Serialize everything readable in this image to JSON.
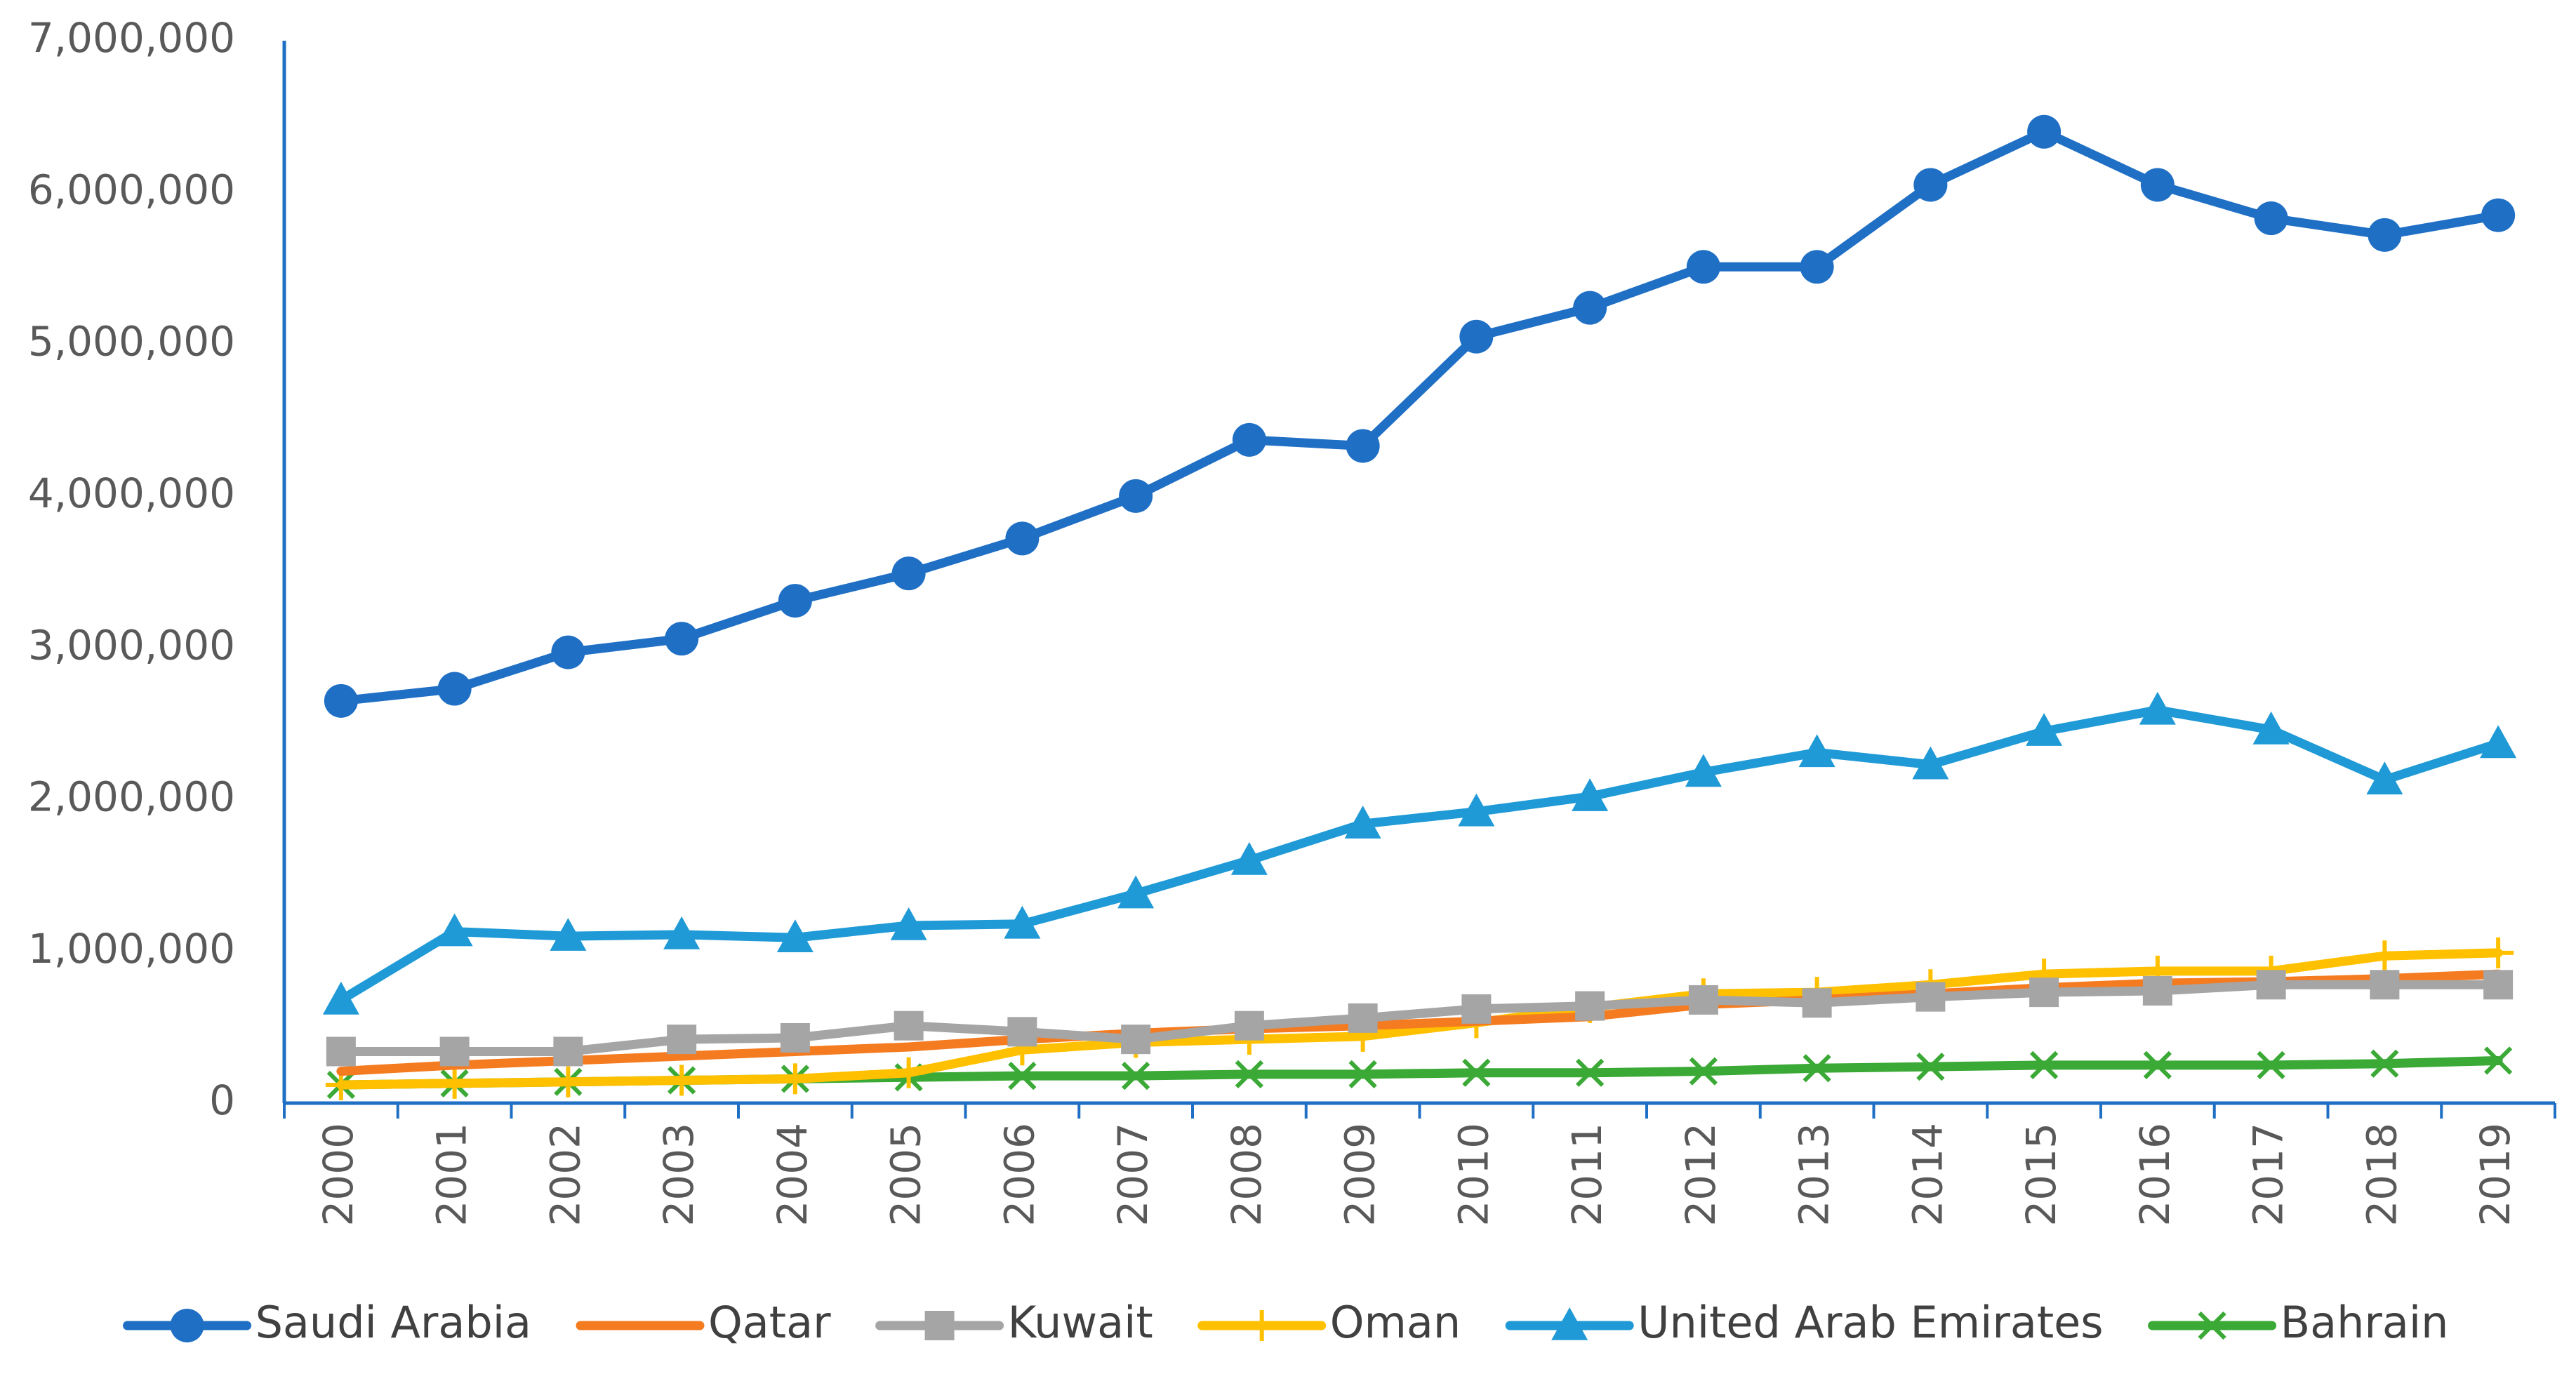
{
  "chart_data": {
    "type": "line",
    "title": "",
    "xlabel": "",
    "ylabel": "",
    "ylim": [
      0,
      7000000
    ],
    "yticks": [
      0,
      1000000,
      2000000,
      3000000,
      4000000,
      5000000,
      6000000,
      7000000
    ],
    "ytick_labels": [
      "0",
      "1,000,000",
      "2,000,000",
      "3,000,000",
      "4,000,000",
      "5,000,000",
      "6,000,000",
      "7,000,000"
    ],
    "grid": false,
    "legend_position": "bottom",
    "x": [
      "2000",
      "2001",
      "2002",
      "2003",
      "2004",
      "2005",
      "2006",
      "2007",
      "2008",
      "2009",
      "2010",
      "2011",
      "2012",
      "2013",
      "2014",
      "2015",
      "2016",
      "2017",
      "2018",
      "2019"
    ],
    "series": [
      {
        "name": "Saudi Arabia",
        "color": "#1f6fc5",
        "marker": "circle",
        "values": [
          2650000,
          2730000,
          2970000,
          3060000,
          3310000,
          3490000,
          3720000,
          4000000,
          4370000,
          4330000,
          5050000,
          5240000,
          5510000,
          5510000,
          6050000,
          6400000,
          6050000,
          5830000,
          5720000,
          5850000
        ]
      },
      {
        "name": "Qatar",
        "color": "#f47b20",
        "marker": "none",
        "values": [
          210000,
          250000,
          280000,
          310000,
          340000,
          370000,
          420000,
          460000,
          490000,
          510000,
          540000,
          570000,
          650000,
          680000,
          720000,
          760000,
          790000,
          800000,
          820000,
          850000
        ]
      },
      {
        "name": "Kuwait",
        "color": "#a5a5a5",
        "marker": "square",
        "values": [
          340000,
          340000,
          340000,
          420000,
          430000,
          510000,
          470000,
          420000,
          510000,
          560000,
          620000,
          640000,
          680000,
          660000,
          700000,
          730000,
          740000,
          780000,
          780000,
          780000
        ]
      },
      {
        "name": "Oman",
        "color": "#ffc000",
        "marker": "plus",
        "values": [
          120000,
          130000,
          140000,
          150000,
          160000,
          200000,
          350000,
          400000,
          420000,
          440000,
          530000,
          630000,
          720000,
          730000,
          780000,
          850000,
          870000,
          870000,
          970000,
          990000
        ]
      },
      {
        "name": "United Arab Emirates",
        "color": "#1f9ad6",
        "marker": "triangle",
        "values": [
          680000,
          1130000,
          1100000,
          1110000,
          1090000,
          1170000,
          1180000,
          1380000,
          1600000,
          1840000,
          1920000,
          2020000,
          2180000,
          2310000,
          2230000,
          2450000,
          2590000,
          2460000,
          2130000,
          2370000
        ]
      },
      {
        "name": "Bahrain",
        "color": "#3aa935",
        "marker": "x",
        "values": [
          120000,
          130000,
          140000,
          150000,
          160000,
          170000,
          180000,
          180000,
          190000,
          190000,
          200000,
          200000,
          210000,
          230000,
          240000,
          250000,
          250000,
          250000,
          260000,
          280000
        ]
      }
    ]
  }
}
